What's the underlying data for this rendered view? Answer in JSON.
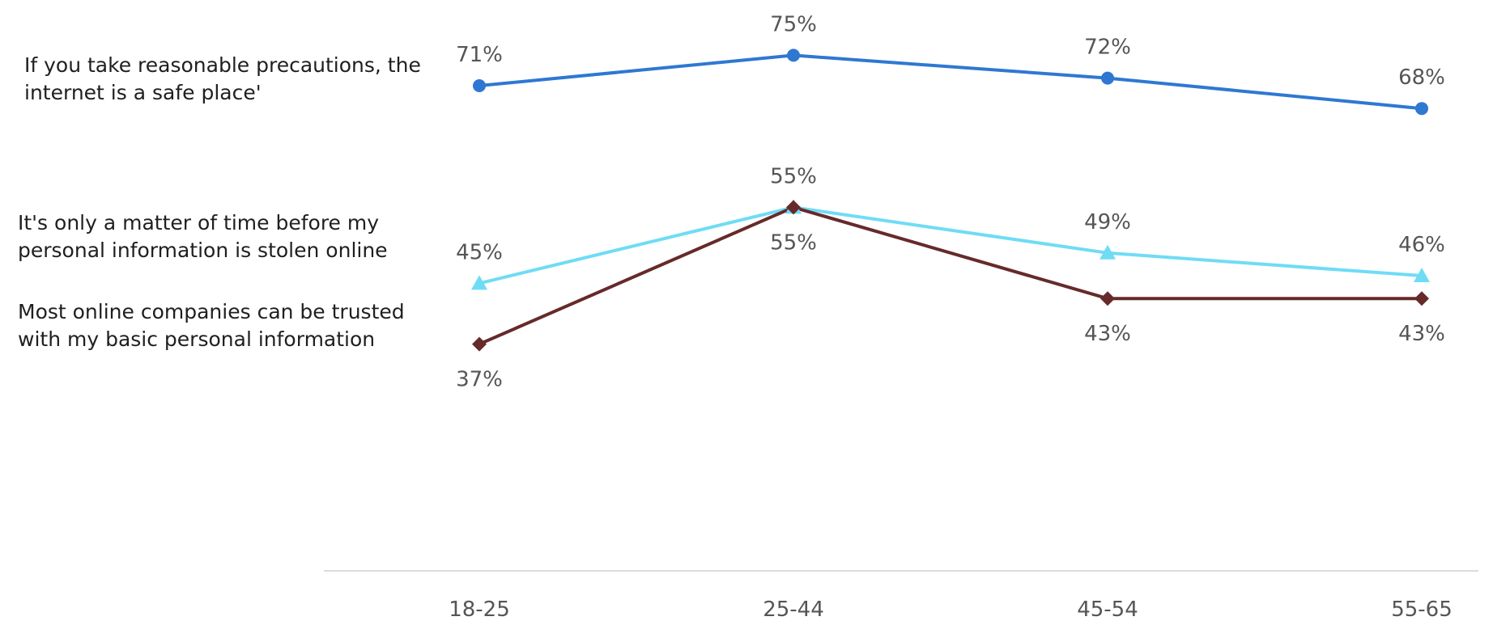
{
  "chart_data": {
    "type": "line",
    "categories": [
      "18-25",
      "25-44",
      "45-54",
      "55-65"
    ],
    "ylim": [
      0,
      80
    ],
    "grid": false,
    "legend": "left",
    "series": [
      {
        "name": "If you take reasonable precautions, the internet is a safe place'",
        "name_lines": [
          "If you take reasonable precautions, the",
          "internet is a safe place'"
        ],
        "values": [
          71,
          75,
          72,
          68
        ],
        "labels": [
          "71%",
          "75%",
          "72%",
          "68%"
        ],
        "color": "#2e78d2",
        "marker": "circle"
      },
      {
        "name": "It's only a matter of time before my personal information is stolen online",
        "name_lines": [
          "It's only a matter of time before my",
          "personal information is stolen online"
        ],
        "values": [
          45,
          55,
          49,
          46
        ],
        "labels": [
          "45%",
          "55%",
          "49%",
          "46%"
        ],
        "color": "#6fdcf5",
        "marker": "triangle"
      },
      {
        "name": "Most online companies can be trusted with my basic personal information",
        "name_lines": [
          "Most online companies can be trusted",
          "with my basic personal information"
        ],
        "values": [
          37,
          55,
          43,
          43
        ],
        "labels": [
          "37%",
          "55%",
          "43%",
          "43%"
        ],
        "color": "#662a2a",
        "marker": "diamond"
      }
    ]
  }
}
